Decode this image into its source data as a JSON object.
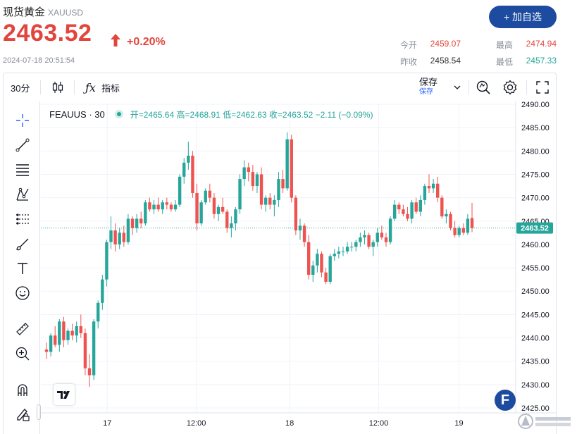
{
  "header": {
    "title": "现货黄金",
    "symbol": "XAUUSD",
    "price": "2463.52",
    "change": "+0.20%",
    "timestamp": "2024-07-18 20:51:54",
    "add_button": "+ 加自选",
    "stats": [
      {
        "label": "今开",
        "value": "2459.07",
        "color": "#e2453c"
      },
      {
        "label": "最高",
        "value": "2474.94",
        "color": "#e2453c"
      },
      {
        "label": "昨收",
        "value": "2458.54",
        "color": "#333333"
      },
      {
        "label": "最低",
        "value": "2457.33",
        "color": "#26a69a"
      }
    ]
  },
  "toolbar": {
    "interval": "30分",
    "indicators": "指标",
    "save": "保存",
    "save_sub": "保存"
  },
  "left_tools": [
    "crosshair-icon",
    "trendline-icon",
    "fib-icon",
    "pattern-icon",
    "projection-icon",
    "brush-icon",
    "text-icon",
    "emoji-icon",
    "ruler-icon",
    "zoom-in-icon",
    "magnet-icon",
    "lock-pencil-icon"
  ],
  "legend": {
    "name": "FEAUUS · 30",
    "ohlc": "开=2465.64 高=2468.91 低=2462.63 收=2463.52 −2.11 (−0.09%)"
  },
  "colors": {
    "up": "#26a69a",
    "down": "#ef5350",
    "accent": "#1d4b9f"
  },
  "chart_data": {
    "type": "candlestick",
    "title": "FEAUUS · 30",
    "ylim": [
      2425,
      2490
    ],
    "y_ticks": [
      "2425.00",
      "2430.00",
      "2435.00",
      "2440.00",
      "2445.00",
      "2450.00",
      "2455.00",
      "2460.00",
      "2465.00",
      "2470.00",
      "2475.00",
      "2480.00",
      "2485.00",
      "2490.00"
    ],
    "x_ticks": [
      "17",
      "12:00",
      "18",
      "12:00",
      "19"
    ],
    "last_price": "2463.52",
    "grid": true,
    "candles": [
      [
        2437.5,
        2439.0,
        2435.5,
        2437.0
      ],
      [
        2437.0,
        2441.0,
        2436.0,
        2440.5
      ],
      [
        2440.5,
        2442.5,
        2438.0,
        2438.5
      ],
      [
        2438.5,
        2444.0,
        2437.0,
        2443.5
      ],
      [
        2443.5,
        2444.5,
        2438.0,
        2439.5
      ],
      [
        2439.5,
        2442.0,
        2438.5,
        2441.5
      ],
      [
        2441.5,
        2443.0,
        2439.5,
        2440.5
      ],
      [
        2440.5,
        2443.5,
        2439.0,
        2442.5
      ],
      [
        2442.5,
        2445.0,
        2440.0,
        2441.0
      ],
      [
        2441.0,
        2442.0,
        2432.0,
        2433.5
      ],
      [
        2433.5,
        2436.5,
        2429.5,
        2432.0
      ],
      [
        2432.0,
        2444.0,
        2431.0,
        2443.5
      ],
      [
        2443.5,
        2448.0,
        2442.0,
        2447.5
      ],
      [
        2447.5,
        2453.5,
        2446.0,
        2452.5
      ],
      [
        2452.5,
        2461.0,
        2451.0,
        2460.5
      ],
      [
        2460.5,
        2466.0,
        2459.0,
        2463.0
      ],
      [
        2463.0,
        2464.5,
        2458.5,
        2460.0
      ],
      [
        2460.0,
        2463.5,
        2459.0,
        2462.5
      ],
      [
        2462.5,
        2464.0,
        2459.5,
        2460.5
      ],
      [
        2460.5,
        2466.5,
        2460.0,
        2465.5
      ],
      [
        2465.5,
        2466.0,
        2462.0,
        2463.5
      ],
      [
        2463.5,
        2466.5,
        2462.5,
        2465.5
      ],
      [
        2465.5,
        2467.0,
        2463.5,
        2464.5
      ],
      [
        2464.5,
        2469.5,
        2464.0,
        2469.0
      ],
      [
        2469.0,
        2470.0,
        2467.0,
        2467.5
      ],
      [
        2467.5,
        2469.5,
        2466.5,
        2468.5
      ],
      [
        2468.5,
        2470.0,
        2467.0,
        2467.5
      ],
      [
        2467.5,
        2469.5,
        2466.5,
        2469.0
      ],
      [
        2469.0,
        2470.0,
        2467.5,
        2468.5
      ],
      [
        2468.5,
        2469.0,
        2467.0,
        2467.5
      ],
      [
        2467.5,
        2469.5,
        2467.0,
        2468.5
      ],
      [
        2468.5,
        2475.0,
        2468.0,
        2474.5
      ],
      [
        2474.5,
        2478.5,
        2473.0,
        2477.5
      ],
      [
        2477.5,
        2482.0,
        2476.0,
        2479.0
      ],
      [
        2479.0,
        2480.0,
        2470.0,
        2471.0
      ],
      [
        2471.0,
        2473.0,
        2463.0,
        2464.5
      ],
      [
        2464.5,
        2469.5,
        2464.0,
        2469.0
      ],
      [
        2469.0,
        2472.0,
        2468.5,
        2471.5
      ],
      [
        2471.5,
        2473.0,
        2469.0,
        2470.0
      ],
      [
        2470.0,
        2471.0,
        2465.5,
        2466.5
      ],
      [
        2466.5,
        2468.5,
        2465.0,
        2468.0
      ],
      [
        2468.0,
        2470.0,
        2466.5,
        2467.0
      ],
      [
        2467.0,
        2467.5,
        2462.5,
        2463.5
      ],
      [
        2463.5,
        2466.0,
        2461.5,
        2464.5
      ],
      [
        2464.5,
        2468.0,
        2463.0,
        2467.5
      ],
      [
        2467.5,
        2475.0,
        2466.5,
        2474.0
      ],
      [
        2474.0,
        2478.0,
        2472.5,
        2476.5
      ],
      [
        2476.5,
        2477.5,
        2473.5,
        2475.5
      ],
      [
        2475.5,
        2477.0,
        2471.5,
        2472.5
      ],
      [
        2472.5,
        2475.5,
        2471.0,
        2475.0
      ],
      [
        2475.0,
        2476.5,
        2467.5,
        2468.5
      ],
      [
        2468.5,
        2470.5,
        2467.0,
        2470.0
      ],
      [
        2470.0,
        2471.0,
        2467.5,
        2468.5
      ],
      [
        2468.5,
        2470.5,
        2466.0,
        2469.5
      ],
      [
        2469.5,
        2475.5,
        2468.0,
        2474.0
      ],
      [
        2474.0,
        2476.0,
        2471.0,
        2472.0
      ],
      [
        2472.0,
        2484.0,
        2471.5,
        2482.5
      ],
      [
        2482.5,
        2483.5,
        2469.0,
        2470.0
      ],
      [
        2470.0,
        2470.5,
        2462.0,
        2463.0
      ],
      [
        2463.0,
        2465.5,
        2461.0,
        2464.0
      ],
      [
        2464.0,
        2464.5,
        2459.5,
        2460.5
      ],
      [
        2460.5,
        2462.0,
        2452.5,
        2453.5
      ],
      [
        2453.5,
        2456.5,
        2452.0,
        2455.5
      ],
      [
        2455.5,
        2459.0,
        2454.0,
        2458.0
      ],
      [
        2458.0,
        2458.5,
        2453.0,
        2454.0
      ],
      [
        2454.0,
        2455.0,
        2451.5,
        2452.0
      ],
      [
        2452.0,
        2458.0,
        2451.5,
        2457.5
      ],
      [
        2457.5,
        2459.0,
        2456.5,
        2458.0
      ],
      [
        2458.0,
        2459.5,
        2457.0,
        2458.5
      ],
      [
        2458.5,
        2459.5,
        2457.5,
        2458.5
      ],
      [
        2458.5,
        2460.5,
        2458.0,
        2459.5
      ],
      [
        2459.5,
        2460.5,
        2458.5,
        2459.5
      ],
      [
        2459.5,
        2461.0,
        2458.5,
        2460.5
      ],
      [
        2460.5,
        2462.5,
        2459.5,
        2461.5
      ],
      [
        2461.5,
        2463.0,
        2460.0,
        2462.0
      ],
      [
        2462.0,
        2462.5,
        2459.0,
        2459.5
      ],
      [
        2459.5,
        2461.0,
        2457.5,
        2460.5
      ],
      [
        2460.5,
        2463.5,
        2459.5,
        2462.5
      ],
      [
        2462.5,
        2464.0,
        2461.0,
        2461.5
      ],
      [
        2461.5,
        2462.5,
        2459.5,
        2460.5
      ],
      [
        2460.5,
        2466.0,
        2460.0,
        2465.5
      ],
      [
        2465.5,
        2469.5,
        2465.0,
        2468.5
      ],
      [
        2468.5,
        2469.0,
        2466.5,
        2467.5
      ],
      [
        2467.5,
        2468.5,
        2466.0,
        2466.5
      ],
      [
        2466.5,
        2468.0,
        2465.0,
        2465.5
      ],
      [
        2465.5,
        2469.5,
        2464.5,
        2469.0
      ],
      [
        2469.0,
        2470.0,
        2466.5,
        2467.0
      ],
      [
        2467.0,
        2470.5,
        2466.0,
        2469.5
      ],
      [
        2469.5,
        2473.0,
        2468.5,
        2472.5
      ],
      [
        2472.5,
        2475.0,
        2471.0,
        2472.0
      ],
      [
        2472.0,
        2474.0,
        2471.0,
        2473.0
      ],
      [
        2473.0,
        2474.5,
        2469.0,
        2470.0
      ],
      [
        2470.0,
        2470.5,
        2465.5,
        2466.0
      ],
      [
        2466.0,
        2467.5,
        2464.5,
        2466.5
      ],
      [
        2466.5,
        2467.0,
        2463.0,
        2463.5
      ],
      [
        2463.5,
        2465.0,
        2461.5,
        2462.0
      ],
      [
        2462.0,
        2464.0,
        2461.5,
        2463.5
      ],
      [
        2463.5,
        2464.5,
        2462.0,
        2462.5
      ],
      [
        2462.5,
        2466.5,
        2462.0,
        2465.5
      ],
      [
        2465.64,
        2468.91,
        2462.63,
        2463.52
      ]
    ]
  }
}
